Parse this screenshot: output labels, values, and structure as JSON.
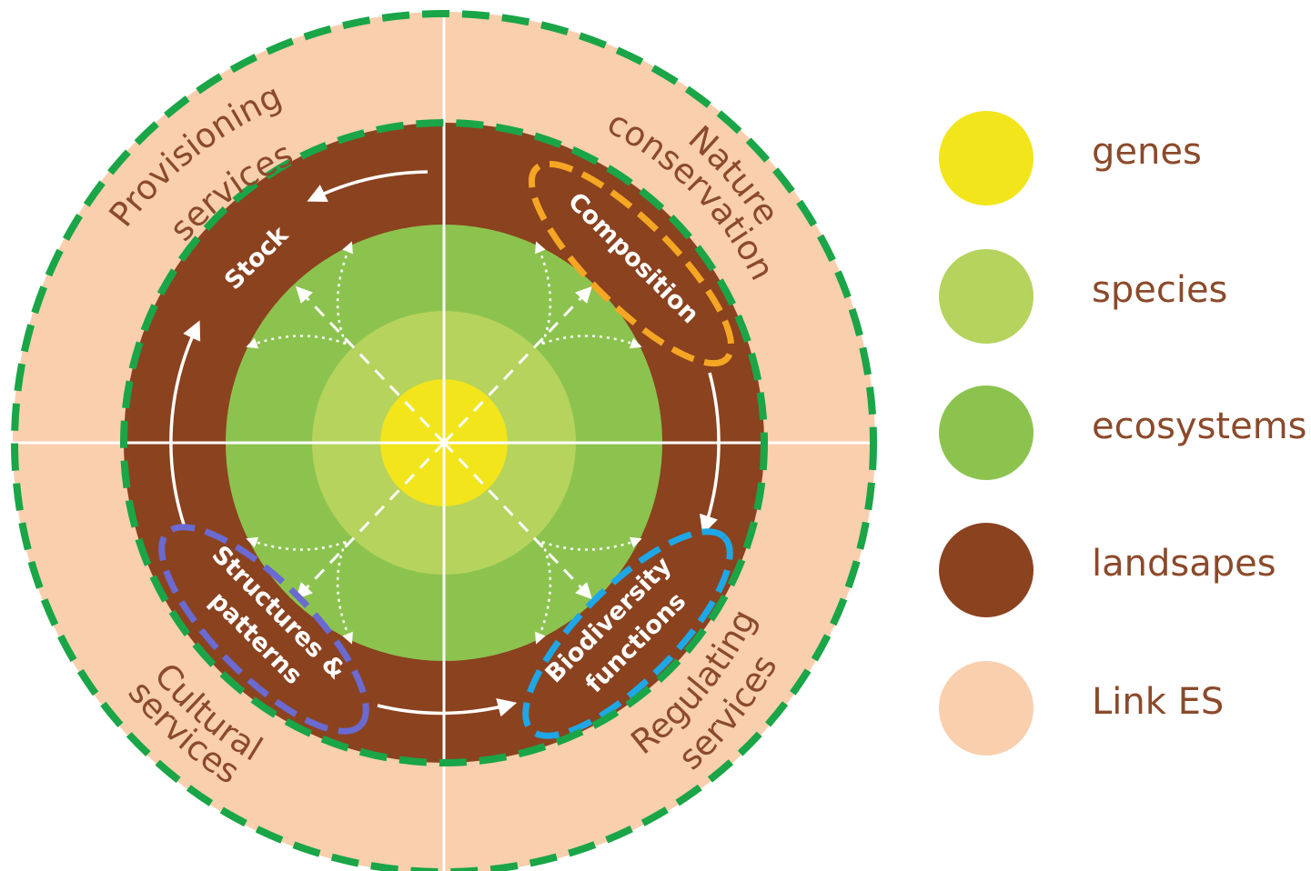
{
  "diagram": {
    "quadrant_labels": {
      "provisioning": [
        "Provisioning",
        "services"
      ],
      "nature": [
        "Nature",
        "conservation"
      ],
      "cultural": [
        "Cultural",
        "services"
      ],
      "regulating": [
        "Regulating",
        "services"
      ]
    },
    "ring_labels": {
      "stock": "Stock",
      "composition": "Composition",
      "structures": [
        "Structures &",
        "patterns"
      ],
      "biodiversity": [
        "Biodiversity",
        "functions"
      ]
    },
    "colors": {
      "genes": "#f2e51c",
      "species": "#b5d35d",
      "ecosystems": "#8cc34f",
      "landscapes": "#8b421f",
      "link_es": "#f9cfae",
      "outline_green": "#1aa548",
      "highlight_composition": "#f5a623",
      "highlight_structures": "#6a6ad1",
      "highlight_biodiversity": "#1ea7e6",
      "text_brown": "#8b4a2b"
    }
  },
  "legend": [
    {
      "label": "genes",
      "color": "#f2e51c"
    },
    {
      "label": "species",
      "color": "#b5d35d"
    },
    {
      "label": "ecosystems",
      "color": "#8cc34f"
    },
    {
      "label": "landsapes",
      "color": "#8b421f"
    },
    {
      "label": "Link ES",
      "color": "#f9cfae"
    }
  ]
}
